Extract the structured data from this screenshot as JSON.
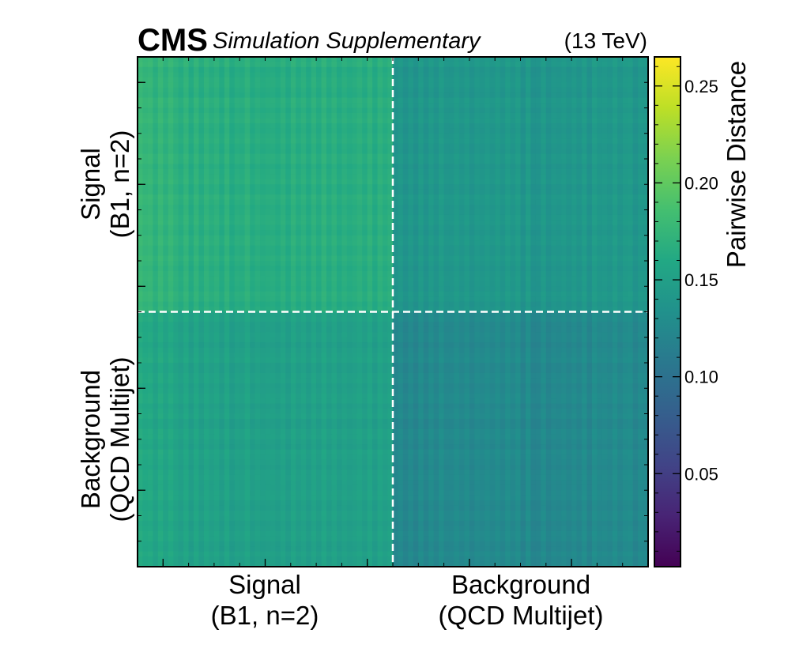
{
  "header": {
    "cms": "CMS",
    "subtitle": "Simulation Supplementary",
    "energy": "(13 TeV)"
  },
  "chart_data": {
    "type": "heatmap",
    "title": "",
    "x_groups": [
      {
        "line1": "Signal",
        "line2": "(B1, n=2)"
      },
      {
        "line1": "Background",
        "line2": "(QCD Multijet)"
      }
    ],
    "y_groups": [
      {
        "line1": "Signal",
        "line2": "(B1, n=2)"
      },
      {
        "line1": "Background",
        "line2": "(QCD Multijet)"
      }
    ],
    "block_means": [
      [
        0.165,
        0.14
      ],
      [
        0.15,
        0.125
      ]
    ],
    "colorbar": {
      "label": "Pairwise Distance",
      "range": [
        0.002,
        0.265
      ],
      "ticks": [
        0.05,
        0.1,
        0.15,
        0.2,
        0.25
      ],
      "tick_labels": [
        "0.05",
        "0.10",
        "0.15",
        "0.20",
        "0.25"
      ],
      "colormap": "viridis"
    },
    "separator_lines": "white dashed at group boundaries"
  }
}
